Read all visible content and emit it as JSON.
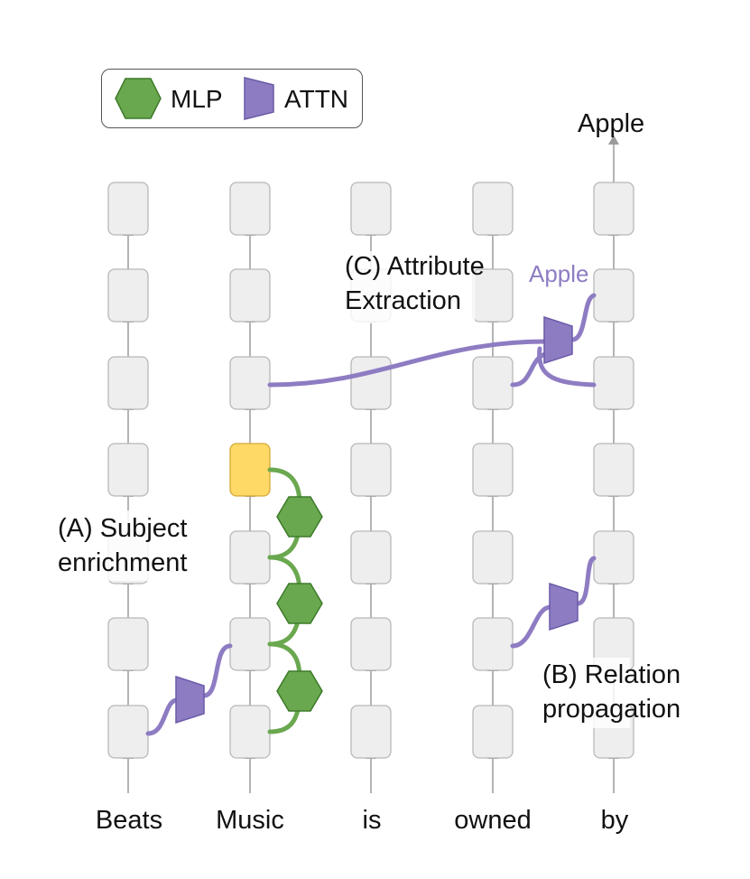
{
  "legend": {
    "mlp_label": "MLP",
    "attn_label": "ATTN"
  },
  "output_token": "Apple",
  "attn_output_label": "Apple",
  "tokens": [
    "Beats",
    "Music",
    "is",
    "owned",
    "by"
  ],
  "annotations": {
    "attribute_extraction": [
      "(C) Attribute",
      "Extraction"
    ],
    "subject_enrichment": [
      "(A) Subject",
      "enrichment"
    ],
    "relation_propagation": [
      "(B) Relation",
      "propagation"
    ]
  },
  "colors": {
    "mlp_fill": "#6aa84f",
    "mlp_stroke": "#3d7a2a",
    "attn_fill": "#8e7cc3",
    "attn_stroke": "#6a5aa8",
    "highlight_fill": "#ffd966",
    "block_fill": "#eeeeee",
    "block_stroke": "#b8b8b8"
  }
}
